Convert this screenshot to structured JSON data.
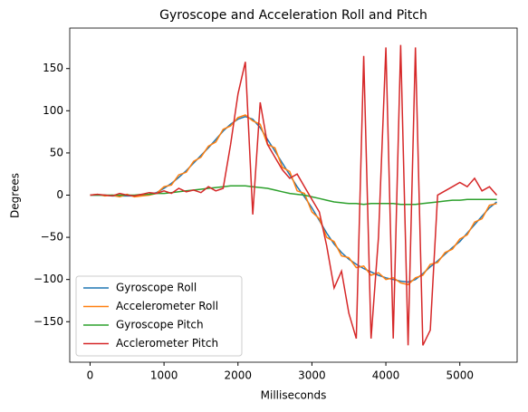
{
  "chart_data": {
    "type": "line",
    "title": "Gyroscope and Acceleration Roll and Pitch",
    "x_label": "Milliseconds",
    "y_label": "Degrees",
    "x": [
      0,
      100,
      200,
      300,
      400,
      500,
      600,
      700,
      800,
      900,
      1000,
      1100,
      1200,
      1300,
      1400,
      1500,
      1600,
      1700,
      1800,
      1900,
      2000,
      2100,
      2200,
      2300,
      2400,
      2500,
      2600,
      2700,
      2800,
      2900,
      3000,
      3100,
      3200,
      3300,
      3400,
      3500,
      3600,
      3700,
      3800,
      3900,
      4000,
      4100,
      4200,
      4300,
      4400,
      4500,
      4600,
      4700,
      4800,
      4900,
      5000,
      5100,
      5200,
      5300,
      5400,
      5500
    ],
    "series": [
      {
        "name": "Gyroscope Roll",
        "color": "#1f77b4",
        "values": [
          0,
          0,
          0,
          -1,
          -1,
          -1,
          -1,
          0,
          1,
          3,
          8,
          14,
          21,
          29,
          38,
          47,
          56,
          66,
          76,
          84,
          90,
          93,
          90,
          80,
          66,
          52,
          38,
          24,
          10,
          -2,
          -15,
          -30,
          -45,
          -58,
          -68,
          -76,
          -82,
          -87,
          -91,
          -95,
          -98,
          -100,
          -102,
          -103,
          -100,
          -93,
          -85,
          -78,
          -70,
          -62,
          -55,
          -45,
          -35,
          -25,
          -15,
          -8
        ]
      },
      {
        "name": "Accelerometer Roll",
        "color": "#ff7f0e",
        "values": [
          0,
          1,
          -1,
          0,
          -2,
          1,
          -2,
          -1,
          0,
          2,
          10,
          12,
          24,
          27,
          40,
          45,
          58,
          63,
          78,
          82,
          92,
          95,
          88,
          84,
          60,
          56,
          33,
          28,
          5,
          2,
          -20,
          -28,
          -50,
          -55,
          -72,
          -74,
          -86,
          -84,
          -95,
          -92,
          -100,
          -98,
          -104,
          -106,
          -98,
          -95,
          -82,
          -80,
          -68,
          -64,
          -52,
          -47,
          -32,
          -28,
          -12,
          -10
        ]
      },
      {
        "name": "Gyroscope Pitch",
        "color": "#2ca02c",
        "values": [
          0,
          0,
          0,
          0,
          0,
          0,
          0,
          1,
          1,
          2,
          2,
          3,
          4,
          5,
          6,
          7,
          8,
          9,
          10,
          11,
          11,
          11,
          10,
          9,
          8,
          6,
          4,
          2,
          1,
          0,
          -2,
          -4,
          -6,
          -8,
          -9,
          -10,
          -10,
          -11,
          -10,
          -10,
          -10,
          -10,
          -11,
          -11,
          -11,
          -10,
          -9,
          -8,
          -7,
          -6,
          -6,
          -5,
          -5,
          -5,
          -5,
          -5
        ]
      },
      {
        "name": "Acclerometer Pitch",
        "color": "#d62728",
        "values": [
          0,
          1,
          0,
          -1,
          2,
          0,
          -1,
          1,
          3,
          2,
          5,
          2,
          8,
          4,
          6,
          3,
          10,
          5,
          8,
          60,
          120,
          158,
          -23,
          110,
          60,
          45,
          30,
          20,
          25,
          10,
          -5,
          -20,
          -60,
          -110,
          -90,
          -140,
          -170,
          165,
          -170,
          -50,
          175,
          -170,
          178,
          -178,
          175,
          -178,
          -160,
          0,
          5,
          10,
          15,
          10,
          20,
          5,
          10,
          0
        ]
      }
    ],
    "xlim": [
      -275,
      5775
    ],
    "xticks": [
      0,
      1000,
      2000,
      3000,
      4000,
      5000
    ],
    "ylim": [
      -198,
      198
    ],
    "yticks": [
      {
        "value": -150,
        "label": "−150"
      },
      {
        "value": -100,
        "label": "−100"
      },
      {
        "value": -50,
        "label": "−50"
      },
      0,
      50,
      100,
      150
    ],
    "legend": "lower left"
  }
}
